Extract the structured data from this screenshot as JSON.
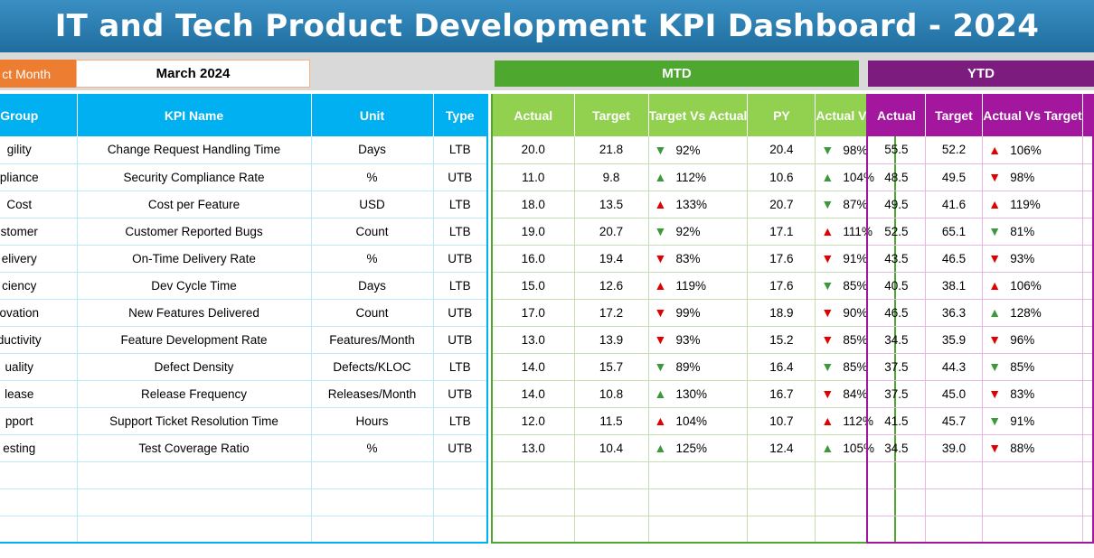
{
  "title": "IT and Tech Product Development KPI Dashboard - 2024",
  "selector": {
    "label": "ct Month",
    "value": "March 2024"
  },
  "mtd_label": "MTD",
  "ytd_label": "YTD",
  "kpi_headers": [
    "Group",
    "KPI Name",
    "Unit",
    "Type"
  ],
  "mtd_headers": [
    "Actual",
    "Target",
    "Target Vs Actual",
    "PY",
    "Actual Vs PY"
  ],
  "ytd_headers": [
    "Actual",
    "Target",
    "Actual Vs Target"
  ],
  "rows": [
    {
      "group": "gility",
      "kpi": "Change Request Handling Time",
      "unit": "Days",
      "type": "LTB",
      "mtd_actual": "20.0",
      "mtd_target": "21.8",
      "mtd_tva": "92%",
      "mtd_tva_dir": "down-good",
      "py": "20.4",
      "mtd_avpy": "98%",
      "mtd_avpy_dir": "down-good",
      "ytd_actual": "55.5",
      "ytd_target": "52.2",
      "ytd_avt": "106%",
      "ytd_avt_dir": "up-bad"
    },
    {
      "group": "pliance",
      "kpi": "Security Compliance Rate",
      "unit": "%",
      "type": "UTB",
      "mtd_actual": "11.0",
      "mtd_target": "9.8",
      "mtd_tva": "112%",
      "mtd_tva_dir": "up-good",
      "py": "10.6",
      "mtd_avpy": "104%",
      "mtd_avpy_dir": "up-good",
      "ytd_actual": "48.5",
      "ytd_target": "49.5",
      "ytd_avt": "98%",
      "ytd_avt_dir": "down-bad"
    },
    {
      "group": "Cost",
      "kpi": "Cost per Feature",
      "unit": "USD",
      "type": "LTB",
      "mtd_actual": "18.0",
      "mtd_target": "13.5",
      "mtd_tva": "133%",
      "mtd_tva_dir": "up-bad",
      "py": "20.7",
      "mtd_avpy": "87%",
      "mtd_avpy_dir": "down-good",
      "ytd_actual": "49.5",
      "ytd_target": "41.6",
      "ytd_avt": "119%",
      "ytd_avt_dir": "up-bad"
    },
    {
      "group": "stomer",
      "kpi": "Customer Reported Bugs",
      "unit": "Count",
      "type": "LTB",
      "mtd_actual": "19.0",
      "mtd_target": "20.7",
      "mtd_tva": "92%",
      "mtd_tva_dir": "down-good",
      "py": "17.1",
      "mtd_avpy": "111%",
      "mtd_avpy_dir": "up-bad",
      "ytd_actual": "52.5",
      "ytd_target": "65.1",
      "ytd_avt": "81%",
      "ytd_avt_dir": "down-good"
    },
    {
      "group": "elivery",
      "kpi": "On-Time Delivery Rate",
      "unit": "%",
      "type": "UTB",
      "mtd_actual": "16.0",
      "mtd_target": "19.4",
      "mtd_tva": "83%",
      "mtd_tva_dir": "down-bad",
      "py": "17.6",
      "mtd_avpy": "91%",
      "mtd_avpy_dir": "down-bad",
      "ytd_actual": "43.5",
      "ytd_target": "46.5",
      "ytd_avt": "93%",
      "ytd_avt_dir": "down-bad"
    },
    {
      "group": "ciency",
      "kpi": "Dev Cycle Time",
      "unit": "Days",
      "type": "LTB",
      "mtd_actual": "15.0",
      "mtd_target": "12.6",
      "mtd_tva": "119%",
      "mtd_tva_dir": "up-bad",
      "py": "17.6",
      "mtd_avpy": "85%",
      "mtd_avpy_dir": "down-good",
      "ytd_actual": "40.5",
      "ytd_target": "38.1",
      "ytd_avt": "106%",
      "ytd_avt_dir": "up-bad"
    },
    {
      "group": "ovation",
      "kpi": "New Features Delivered",
      "unit": "Count",
      "type": "UTB",
      "mtd_actual": "17.0",
      "mtd_target": "17.2",
      "mtd_tva": "99%",
      "mtd_tva_dir": "down-bad",
      "py": "18.9",
      "mtd_avpy": "90%",
      "mtd_avpy_dir": "down-bad",
      "ytd_actual": "46.5",
      "ytd_target": "36.3",
      "ytd_avt": "128%",
      "ytd_avt_dir": "up-good"
    },
    {
      "group": "ductivity",
      "kpi": "Feature Development Rate",
      "unit": "Features/Month",
      "type": "UTB",
      "mtd_actual": "13.0",
      "mtd_target": "13.9",
      "mtd_tva": "93%",
      "mtd_tva_dir": "down-bad",
      "py": "15.2",
      "mtd_avpy": "85%",
      "mtd_avpy_dir": "down-bad",
      "ytd_actual": "34.5",
      "ytd_target": "35.9",
      "ytd_avt": "96%",
      "ytd_avt_dir": "down-bad"
    },
    {
      "group": "uality",
      "kpi": "Defect Density",
      "unit": "Defects/KLOC",
      "type": "LTB",
      "mtd_actual": "14.0",
      "mtd_target": "15.7",
      "mtd_tva": "89%",
      "mtd_tva_dir": "down-good",
      "py": "16.4",
      "mtd_avpy": "85%",
      "mtd_avpy_dir": "down-good",
      "ytd_actual": "37.5",
      "ytd_target": "44.3",
      "ytd_avt": "85%",
      "ytd_avt_dir": "down-good"
    },
    {
      "group": "lease",
      "kpi": "Release Frequency",
      "unit": "Releases/Month",
      "type": "UTB",
      "mtd_actual": "14.0",
      "mtd_target": "10.8",
      "mtd_tva": "130%",
      "mtd_tva_dir": "up-good",
      "py": "16.7",
      "mtd_avpy": "84%",
      "mtd_avpy_dir": "down-bad",
      "ytd_actual": "37.5",
      "ytd_target": "45.0",
      "ytd_avt": "83%",
      "ytd_avt_dir": "down-bad"
    },
    {
      "group": "pport",
      "kpi": "Support Ticket Resolution Time",
      "unit": "Hours",
      "type": "LTB",
      "mtd_actual": "12.0",
      "mtd_target": "11.5",
      "mtd_tva": "104%",
      "mtd_tva_dir": "up-bad",
      "py": "10.7",
      "mtd_avpy": "112%",
      "mtd_avpy_dir": "up-bad",
      "ytd_actual": "41.5",
      "ytd_target": "45.7",
      "ytd_avt": "91%",
      "ytd_avt_dir": "down-good"
    },
    {
      "group": "esting",
      "kpi": "Test Coverage Ratio",
      "unit": "%",
      "type": "UTB",
      "mtd_actual": "13.0",
      "mtd_target": "10.4",
      "mtd_tva": "125%",
      "mtd_tva_dir": "up-good",
      "py": "12.4",
      "mtd_avpy": "105%",
      "mtd_avpy_dir": "up-good",
      "ytd_actual": "34.5",
      "ytd_target": "39.0",
      "ytd_avt": "88%",
      "ytd_avt_dir": "down-bad"
    }
  ],
  "empty_rows": 3,
  "colors": {
    "kpi_header": "#00b0f0",
    "mtd": "#4ea72e",
    "mtd_header": "#92d050",
    "ytd": "#7b1c7e",
    "ytd_header": "#a2179e",
    "good_arrow": "#3a9a3a",
    "bad_arrow": "#e00000"
  }
}
